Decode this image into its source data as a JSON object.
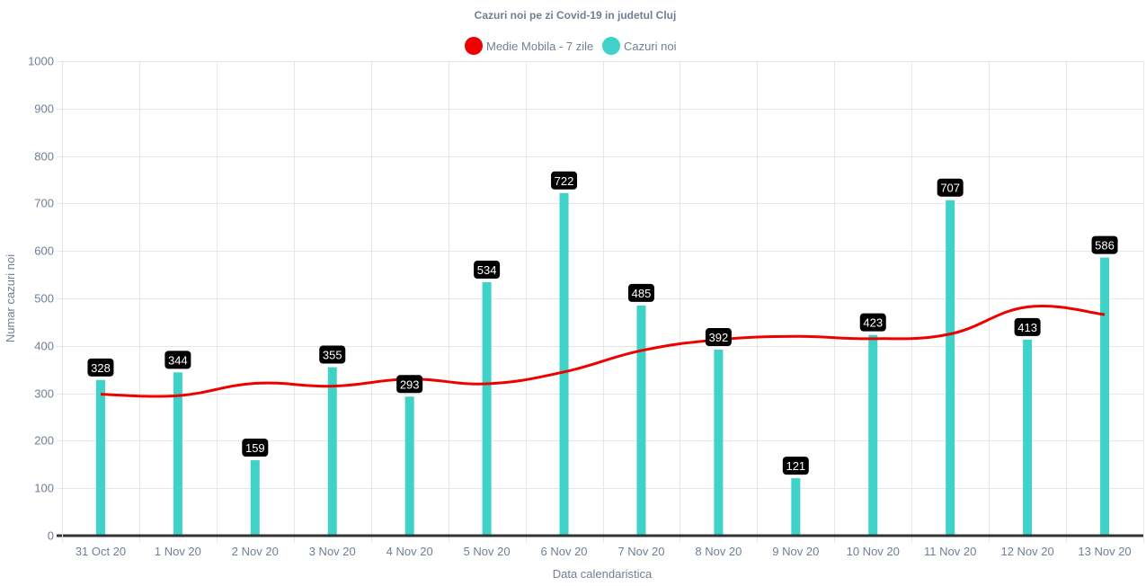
{
  "chart_data": {
    "type": "bar",
    "title": "Cazuri noi pe zi Covid-19 in judetul Cluj",
    "xlabel": "Data calendaristica",
    "ylabel": "Numar cazuri noi",
    "ylim": [
      0,
      1000
    ],
    "yticks": [
      0,
      100,
      200,
      300,
      400,
      500,
      600,
      700,
      800,
      900,
      1000
    ],
    "grid": true,
    "legend_position": "top",
    "categories": [
      "31 Oct 20",
      "1 Nov 20",
      "2 Nov 20",
      "3 Nov 20",
      "4 Nov 20",
      "5 Nov 20",
      "6 Nov 20",
      "7 Nov 20",
      "8 Nov 20",
      "9 Nov 20",
      "10 Nov 20",
      "11 Nov 20",
      "12 Nov 20",
      "13 Nov 20"
    ],
    "series": [
      {
        "name": "Medie Mobila - 7 zile",
        "type": "line",
        "color": "#ee0000",
        "values": [
          298,
          295,
          321,
          315,
          330,
          320,
          345,
          390,
          413,
          420,
          415,
          425,
          482,
          466
        ]
      },
      {
        "name": "Cazuri noi",
        "type": "bar",
        "color": "#3fd2c8",
        "values": [
          328,
          344,
          159,
          355,
          293,
          534,
          722,
          485,
          392,
          121,
          423,
          707,
          413,
          586
        ],
        "data_labels": true
      }
    ]
  }
}
